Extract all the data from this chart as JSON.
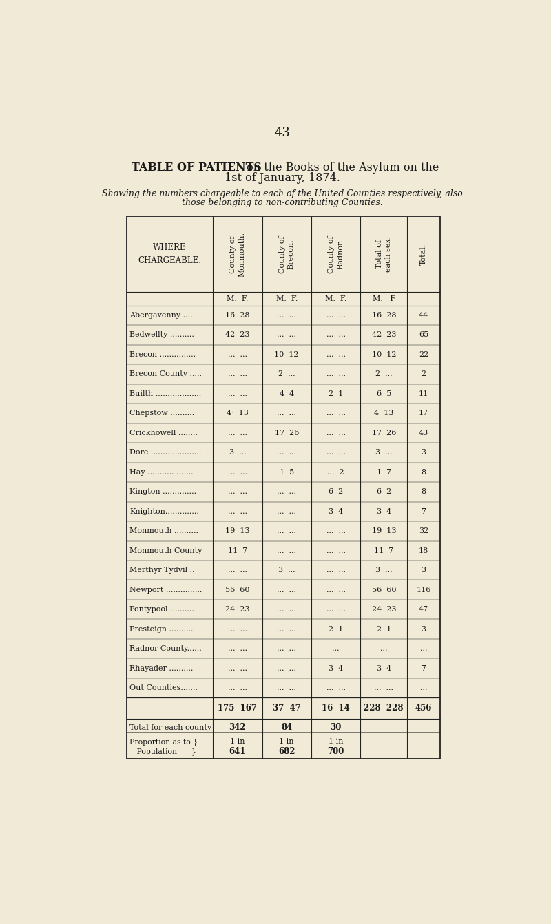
{
  "page_number": "43",
  "title_bold": "TABLE OF PATIENTS",
  "title_rest": " on the Books of the Asylum on the",
  "title_rest2": "1st of January, 1874.",
  "subtitle1": "Showing the numbers chargeable to each of the United Counties respectively, also",
  "subtitle2": "those belonging to non-contributing Counties.",
  "col_headers": [
    "WHERE\nCHARGEABLE.",
    "County of\nMonmouth.",
    "County of\nBrecon.",
    "County of\nRadnor.",
    "Total of\neach sex.",
    "Total."
  ],
  "mf_headers": [
    "",
    "M.  F.",
    "M.  F.",
    "M.  F.",
    "M.   F",
    ""
  ],
  "rows": [
    [
      "Abergavenny .....",
      "16  28",
      "...  ...",
      "...  ...",
      "16  28",
      "44"
    ],
    [
      "Bedwellty ..........",
      "42  23",
      "...  ...",
      "...  ...",
      "42  23",
      "65"
    ],
    [
      "Brecon ...............",
      "...  ...",
      "10  12",
      "...  ...",
      "10  12",
      "22"
    ],
    [
      "Brecon County .....",
      "...  ...",
      "2  ...",
      "...  ...",
      "2  ...",
      "2"
    ],
    [
      "Builth ...................",
      "...  ...",
      "4  4",
      "2  1",
      "6  5",
      "11"
    ],
    [
      "Chepstow ..........",
      "4·  13",
      "...  ...",
      "...  ...",
      "4  13",
      "17"
    ],
    [
      "Crickhowell ........",
      "...  ...",
      "17  26",
      "...  ...",
      "17  26",
      "43"
    ],
    [
      "Dore .....................",
      "3  ...",
      "...  ...",
      "...  ...",
      "3  ...",
      "3"
    ],
    [
      "Hay ........... .......",
      "...  ...",
      "1  5",
      "...  2",
      "1  7",
      "8"
    ],
    [
      "Kington ..............",
      "...  ...",
      "...  ...",
      "6  2",
      "6  2",
      "8"
    ],
    [
      "Knighton..............",
      "...  ...",
      "...  ...",
      "3  4",
      "3  4",
      "7"
    ],
    [
      "Monmouth ..........",
      "19  13",
      "...  ...",
      "...  ...",
      "19  13",
      "32"
    ],
    [
      "Monmouth County",
      "11  7",
      "...  ...",
      "...  ...",
      "11  7",
      "18"
    ],
    [
      "Merthyr Tydvil ..",
      "...  ...",
      "3  ...",
      "...  ...",
      "3  ...",
      "3"
    ],
    [
      "Newport ...............",
      "56  60",
      "...  ...",
      "...  ...",
      "56  60",
      "116"
    ],
    [
      "Pontypool ..........",
      "24  23",
      "...  ...",
      "...  ...",
      "24  23",
      "47"
    ],
    [
      "Presteign ..........",
      "...  ...",
      "...  ...",
      "2  1",
      "2  1",
      "3"
    ],
    [
      "Radnor County......",
      "...  ...",
      "...  ...",
      "...",
      "...",
      "..."
    ],
    [
      "Rhayader ..........",
      "...  ...",
      "...  ...",
      "3  4",
      "3  4",
      "7"
    ],
    [
      "Out Counties.......",
      "...  ...",
      "...  ...",
      "...  ...",
      "...  ...",
      "..."
    ]
  ],
  "totals_row": [
    "",
    "175  167",
    "37  47",
    "16  14",
    "228  228",
    "456"
  ],
  "total_each_county_label": "Total for each county",
  "total_each_county_vals": [
    "342",
    "84",
    "30"
  ],
  "proportion_label1": "Proportion as to }",
  "proportion_label2": "   Population      }",
  "proportion_1in": [
    "1 in",
    "1 in",
    "1 in"
  ],
  "proportion_num": [
    "641",
    "682",
    "700"
  ],
  "bg_color": "#f0ead6",
  "text_color": "#1a1a1a",
  "line_color": "#222222"
}
